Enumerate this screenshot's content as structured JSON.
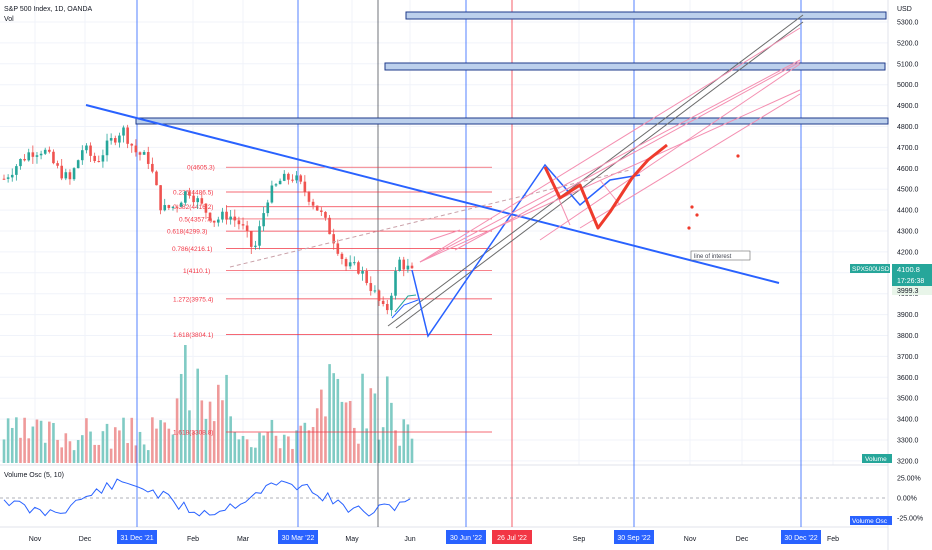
{
  "header": {
    "title": "S&P 500 Index, 1D, OANDA",
    "vol_label": "Vol"
  },
  "axis": {
    "currency": "USD",
    "ticks": [
      "5300.0",
      "5200.0",
      "5100.0",
      "5000.0",
      "4900.0",
      "4800.0",
      "4700.0",
      "4600.0",
      "4500.0",
      "4400.0",
      "4300.0",
      "4200.0",
      "4100.0",
      "4000.0",
      "3900.0",
      "3800.0",
      "3700.0",
      "3600.0",
      "3500.0",
      "3400.0",
      "3300.0",
      "3200.0"
    ],
    "price_badge": {
      "symbol": "SPX500USD",
      "price": "4100.8",
      "countdown": "17:26:38",
      "secondary": "3999.3",
      "color": "#26a69a"
    },
    "volume_badge": "Volume"
  },
  "osc": {
    "label": "Volume Osc (5, 10)",
    "ticks": [
      "25.00%",
      "0.00%",
      "-25.00%"
    ],
    "badge": "Volume Osc"
  },
  "time_axis": {
    "labels": [
      "Nov",
      "Dec",
      "Feb",
      "Mar",
      "May",
      "Jun",
      "Sep",
      "Nov",
      "Dec",
      "Feb"
    ],
    "highlighted": [
      "31 Dec '21",
      "30 Mar '22",
      "30 Jun '22",
      "26 Jul '22",
      "30 Sep '22",
      "30 Dec '22"
    ]
  },
  "fib": {
    "labels": [
      "0(4605.3)",
      "0.236(4486.5)",
      "0.382(4416.2)",
      "0.5(4357.7)",
      "0.618(4299.3)",
      "0.786(4216.1)",
      "1(4110.1)",
      "1.272(3975.4)",
      "1.618(3804.1)",
      "1.618(3308.8)"
    ]
  },
  "annotation": "line of interest",
  "colors": {
    "up": "#26a69a",
    "down": "#ef5350",
    "trend": "#2962ff",
    "fib": "#f23645",
    "band": "#1e3a8a"
  },
  "chart_data": {
    "type": "candlestick",
    "title": "S&P 500 Index, 1D, OANDA",
    "ylim": [
      3150,
      5360
    ],
    "last_price": 4100.8,
    "close_series": [
      {
        "date": "2021-10-25",
        "close": 4550
      },
      {
        "date": "2021-11-01",
        "close": 4620
      },
      {
        "date": "2021-11-08",
        "close": 4680
      },
      {
        "date": "2021-11-15",
        "close": 4690
      },
      {
        "date": "2021-11-22",
        "close": 4600
      },
      {
        "date": "2021-11-29",
        "close": 4540
      },
      {
        "date": "2021-12-06",
        "close": 4700
      },
      {
        "date": "2021-12-13",
        "close": 4630
      },
      {
        "date": "2021-12-20",
        "close": 4720
      },
      {
        "date": "2021-12-27",
        "close": 4790
      },
      {
        "date": "2022-01-03",
        "close": 4680
      },
      {
        "date": "2022-01-10",
        "close": 4640
      },
      {
        "date": "2022-01-17",
        "close": 4400
      },
      {
        "date": "2022-01-24",
        "close": 4420
      },
      {
        "date": "2022-01-31",
        "close": 4500
      },
      {
        "date": "2022-02-07",
        "close": 4420
      },
      {
        "date": "2022-02-14",
        "close": 4350
      },
      {
        "date": "2022-02-21",
        "close": 4380
      },
      {
        "date": "2022-02-28",
        "close": 4330
      },
      {
        "date": "2022-03-07",
        "close": 4200
      },
      {
        "date": "2022-03-14",
        "close": 4460
      },
      {
        "date": "2022-03-21",
        "close": 4540
      },
      {
        "date": "2022-03-28",
        "close": 4560
      },
      {
        "date": "2022-04-04",
        "close": 4480
      },
      {
        "date": "2022-04-11",
        "close": 4390
      },
      {
        "date": "2022-04-18",
        "close": 4270
      },
      {
        "date": "2022-04-25",
        "close": 4130
      },
      {
        "date": "2022-05-02",
        "close": 4120
      },
      {
        "date": "2022-05-09",
        "close": 4020
      },
      {
        "date": "2022-05-16",
        "close": 3900
      },
      {
        "date": "2022-05-23",
        "close": 4160
      },
      {
        "date": "2022-05-30",
        "close": 4100
      }
    ],
    "fibonacci": [
      {
        "level": "0",
        "price": 4605.3
      },
      {
        "level": "0.236",
        "price": 4486.5
      },
      {
        "level": "0.382",
        "price": 4416.2
      },
      {
        "level": "0.5",
        "price": 4357.7
      },
      {
        "level": "0.618",
        "price": 4299.3
      },
      {
        "level": "0.786",
        "price": 4216.1
      },
      {
        "level": "1",
        "price": 4110.1
      },
      {
        "level": "1.272",
        "price": 3975.4
      },
      {
        "level": "1.618",
        "price": 3804.1
      },
      {
        "level": "1.618",
        "price": 3308.8
      }
    ],
    "resistance_bands": [
      5325,
      5080,
      4820
    ],
    "events": [
      "31 Dec '21",
      "30 Mar '22",
      "30 Jun '22",
      "26 Jul '22",
      "30 Sep '22",
      "30 Dec '22"
    ]
  }
}
